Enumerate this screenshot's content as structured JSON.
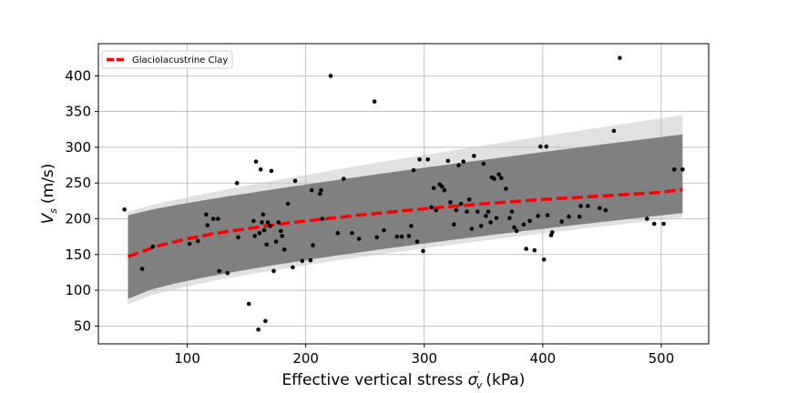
{
  "chart_data": {
    "type": "scatter",
    "xlabel": "Effective vertical stress",
    "xlabel_symbol": "σ",
    "xlabel_sub": "v",
    "xlabel_prime": "′",
    "xlabel_unit": "(kPa)",
    "ylabel_symbol": "V",
    "ylabel_sub": "s",
    "ylabel_unit": "(m/s)",
    "xlim": [
      25,
      540
    ],
    "ylim": [
      25,
      445
    ],
    "xticks": [
      100,
      200,
      300,
      400,
      500
    ],
    "yticks": [
      50,
      100,
      150,
      200,
      250,
      300,
      350,
      400
    ],
    "grid": true,
    "legend": {
      "position": "top-left",
      "label": "Glaciolacustrine Clay"
    },
    "colors": {
      "median": "#ff0000",
      "band": "#808080",
      "points": "#000000",
      "grid": "#b0b0b0"
    },
    "median_curve": {
      "name": "Glaciolacustrine Clay",
      "x": [
        50,
        75,
        100,
        125,
        150,
        175,
        200,
        250,
        300,
        350,
        400,
        450,
        500,
        518
      ],
      "y": [
        147,
        162,
        172,
        180,
        186,
        192,
        197,
        206,
        214,
        221,
        227,
        232,
        237,
        241
      ]
    },
    "uncertainty_band": {
      "x": [
        50,
        518
      ],
      "upper": [
        205,
        318
      ],
      "lower": [
        88,
        208
      ],
      "outlier_upper": [
        210,
        345
      ],
      "outlier_lower": [
        80,
        202
      ]
    },
    "points": [
      [
        47,
        213
      ],
      [
        62,
        130
      ],
      [
        71,
        161
      ],
      [
        102,
        165
      ],
      [
        109,
        169
      ],
      [
        116,
        206
      ],
      [
        117,
        191
      ],
      [
        122,
        200
      ],
      [
        126,
        200
      ],
      [
        127,
        127
      ],
      [
        134,
        124
      ],
      [
        142,
        250
      ],
      [
        143,
        174
      ],
      [
        152,
        81
      ],
      [
        156,
        197
      ],
      [
        157,
        176
      ],
      [
        158,
        280
      ],
      [
        160,
        45
      ],
      [
        161,
        180
      ],
      [
        162,
        269
      ],
      [
        163,
        195
      ],
      [
        164,
        206
      ],
      [
        165,
        184
      ],
      [
        166,
        57
      ],
      [
        167,
        164
      ],
      [
        168,
        195
      ],
      [
        170,
        190
      ],
      [
        171,
        267
      ],
      [
        173,
        127
      ],
      [
        175,
        168
      ],
      [
        177,
        195
      ],
      [
        179,
        183
      ],
      [
        180,
        176
      ],
      [
        182,
        157
      ],
      [
        185,
        221
      ],
      [
        189,
        132
      ],
      [
        191,
        253
      ],
      [
        197,
        141
      ],
      [
        204,
        142
      ],
      [
        205,
        240
      ],
      [
        206,
        163
      ],
      [
        212,
        235
      ],
      [
        213,
        240
      ],
      [
        214,
        200
      ],
      [
        221,
        400
      ],
      [
        227,
        180
      ],
      [
        232,
        256
      ],
      [
        239,
        180
      ],
      [
        245,
        172
      ],
      [
        258,
        364
      ],
      [
        260,
        174
      ],
      [
        266,
        184
      ],
      [
        277,
        175
      ],
      [
        281,
        175
      ],
      [
        287,
        176
      ],
      [
        289,
        190
      ],
      [
        291,
        268
      ],
      [
        294,
        168
      ],
      [
        296,
        283
      ],
      [
        299,
        155
      ],
      [
        303,
        283
      ],
      [
        306,
        216
      ],
      [
        308,
        243
      ],
      [
        310,
        212
      ],
      [
        313,
        248
      ],
      [
        315,
        245
      ],
      [
        317,
        240
      ],
      [
        320,
        281
      ],
      [
        322,
        223
      ],
      [
        325,
        192
      ],
      [
        327,
        212
      ],
      [
        329,
        275
      ],
      [
        331,
        221
      ],
      [
        333,
        280
      ],
      [
        336,
        210
      ],
      [
        338,
        227
      ],
      [
        340,
        186
      ],
      [
        342,
        288
      ],
      [
        345,
        210
      ],
      [
        348,
        190
      ],
      [
        350,
        277
      ],
      [
        352,
        204
      ],
      [
        354,
        210
      ],
      [
        356,
        195
      ],
      [
        357,
        258
      ],
      [
        359,
        256
      ],
      [
        361,
        201
      ],
      [
        363,
        262
      ],
      [
        365,
        257
      ],
      [
        369,
        242
      ],
      [
        372,
        201
      ],
      [
        374,
        210
      ],
      [
        376,
        188
      ],
      [
        378,
        183
      ],
      [
        384,
        192
      ],
      [
        386,
        158
      ],
      [
        389,
        197
      ],
      [
        393,
        156
      ],
      [
        396,
        204
      ],
      [
        398,
        301
      ],
      [
        401,
        143
      ],
      [
        403,
        301
      ],
      [
        404,
        205
      ],
      [
        407,
        177
      ],
      [
        408,
        181
      ],
      [
        416,
        196
      ],
      [
        422,
        203
      ],
      [
        431,
        203
      ],
      [
        432,
        218
      ],
      [
        438,
        218
      ],
      [
        448,
        215
      ],
      [
        453,
        212
      ],
      [
        460,
        323
      ],
      [
        465,
        425
      ],
      [
        488,
        200
      ],
      [
        494,
        193
      ],
      [
        502,
        193
      ],
      [
        511,
        269
      ],
      [
        518,
        269
      ]
    ]
  }
}
